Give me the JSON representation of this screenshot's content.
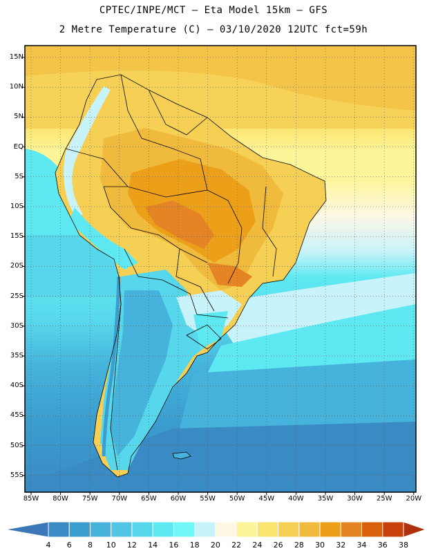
{
  "header": {
    "line1": "CPTEC/INPE/MCT –  Eta Model 15km – GFS",
    "line2": "2 Metre Temperature (C) – 03/10/2020 12UTC fct=59h"
  },
  "axes": {
    "latitudes": [
      "15N",
      "10N",
      "5N",
      "EQ",
      "5S",
      "10S",
      "15S",
      "20S",
      "25S",
      "30S",
      "35S",
      "40S",
      "45S",
      "50S",
      "55S"
    ],
    "longitudes": [
      "85W",
      "80W",
      "75W",
      "70W",
      "65W",
      "60W",
      "55W",
      "50W",
      "45W",
      "40W",
      "35W",
      "30W",
      "25W",
      "20W"
    ]
  },
  "colorbar": {
    "labels": [
      "4",
      "6",
      "8",
      "10",
      "12",
      "14",
      "16",
      "18",
      "20",
      "22",
      "24",
      "26",
      "28",
      "30",
      "32",
      "34",
      "36",
      "38"
    ],
    "colors": [
      "#3c78b8",
      "#3a8ac4",
      "#3b9ecf",
      "#45b3dc",
      "#50c6e4",
      "#57d7eb",
      "#5ee9f2",
      "#6ff8f6",
      "#c9f3fa",
      "#fdf7e4",
      "#fdf59a",
      "#fbe46d",
      "#f6cf55",
      "#f0bb3d",
      "#eca019",
      "#e58424",
      "#d9600d",
      "#c8420b",
      "#b02f0c"
    ]
  }
}
